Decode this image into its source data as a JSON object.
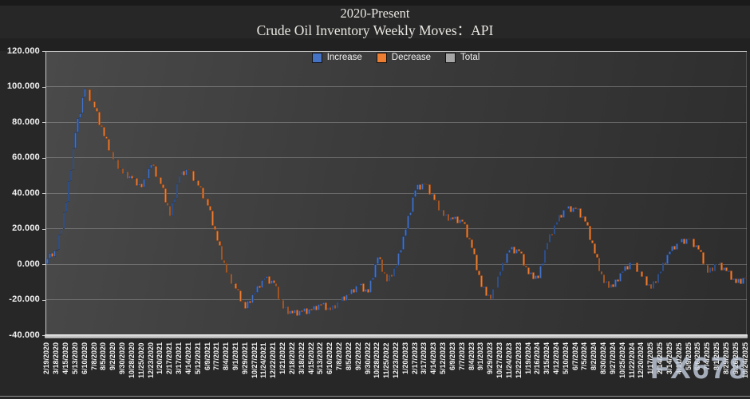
{
  "title": {
    "line1": "2020-Present",
    "line2": "Crude Oil Inventory Weekly Moves：API"
  },
  "watermark": "FX678",
  "colors": {
    "background": "#272727",
    "increase": "#4472C4",
    "decrease": "#ED7D31",
    "total": "#A6A6A6",
    "axis": "#C9C9C9",
    "label": "#F0F0F0"
  },
  "chart_data": {
    "type": "bar",
    "subtype": "waterfall",
    "title": "2020-Present",
    "subtitle": "Crude Oil Inventory Weekly Moves：API",
    "legend": [
      {
        "label": "Increase",
        "color": "#4472C4"
      },
      {
        "label": "Decrease",
        "color": "#ED7D31"
      },
      {
        "label": "Total",
        "color": "#A6A6A6"
      }
    ],
    "legend_position": "top-center",
    "grid": "horizontal",
    "y_axis": {
      "min": -40,
      "max": 120,
      "step": 20,
      "tick_labels": [
        "120.000",
        "100.000",
        "80.000",
        "60.000",
        "40.000",
        "20.000",
        "0.000",
        "-20.000",
        "-40.000"
      ]
    },
    "categories": [
      "2/19/2020",
      "3/18/2020",
      "4/15/2020",
      "5/13/2020",
      "6/10/2020",
      "7/8/2020",
      "8/5/2020",
      "9/2/2020",
      "9/30/2020",
      "10/28/2020",
      "11/25/2020",
      "12/23/2020",
      "1/20/2021",
      "2/17/2021",
      "3/17/2021",
      "4/14/2021",
      "5/12/2021",
      "6/9/2021",
      "7/7/2021",
      "8/4/2021",
      "9/1/2021",
      "9/29/2021",
      "10/27/2021",
      "11/24/2021",
      "12/22/2021",
      "1/21/2022",
      "2/18/2022",
      "3/18/2022",
      "4/15/2022",
      "5/13/2022",
      "6/10/2022",
      "7/8/2022",
      "8/5/2022",
      "9/2/2022",
      "9/30/2022",
      "10/28/2022",
      "11/25/2022",
      "12/23/2022",
      "1/20/2023",
      "2/17/2023",
      "3/17/2023",
      "4/14/2023",
      "5/12/2023",
      "6/9/2023",
      "7/7/2023",
      "8/4/2023",
      "9/1/2023",
      "9/29/2023",
      "10/27/2023",
      "11/24/2023",
      "12/22/2023",
      "1/19/2024",
      "2/16/2024",
      "3/15/2024",
      "4/12/2024",
      "5/10/2024",
      "6/7/2024",
      "7/5/2024",
      "8/2/2024",
      "8/30/2024",
      "9/27/2024",
      "10/25/2024",
      "11/22/2024",
      "12/20/2024",
      "1/17/2025",
      "2/14/2025",
      "3/14/2025",
      "4/11/2025",
      "5/9/2025",
      "6/6/2025",
      "7/4/2025",
      "8/1/2025",
      "8/29/2025",
      "9/26/2025",
      "10/24/2025"
    ],
    "cumulative_at_categories": [
      3,
      8,
      35,
      74,
      99,
      88,
      72,
      59,
      51,
      48,
      43,
      56,
      45,
      27,
      50,
      53,
      44,
      33,
      13,
      -5,
      -14,
      -25,
      -16,
      -8,
      -11,
      -25,
      -28,
      -27,
      -26,
      -23,
      -26,
      -21,
      -17,
      -12,
      -16,
      4,
      -10,
      -1,
      20,
      42,
      45,
      36,
      27,
      25,
      24,
      9,
      -13,
      -20,
      -4,
      8,
      7,
      -6,
      -8,
      12,
      24,
      31,
      31,
      24,
      6,
      -11,
      -13,
      -4,
      1,
      -7,
      -14,
      -4,
      7,
      12,
      14,
      8,
      -5,
      0,
      -4,
      -11,
      -8
    ],
    "weeks_per_category": 4,
    "weekly_wiggle": [
      0,
      2.0,
      -1.6,
      1.1
    ],
    "start_value": 0
  }
}
